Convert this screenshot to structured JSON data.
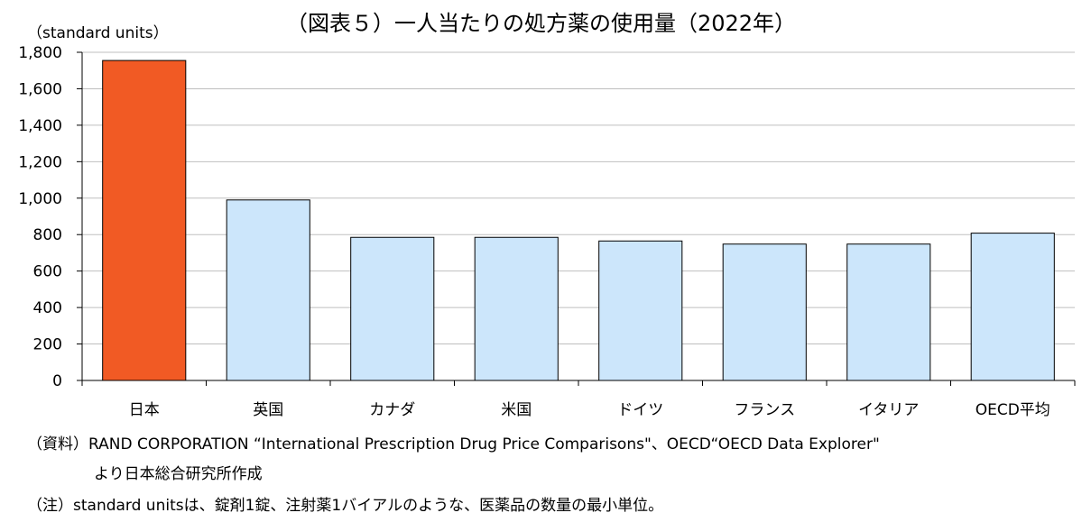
{
  "chart_data": {
    "type": "bar",
    "title": "（図表５）一人当たりの処方薬の使用量（2022年）",
    "ylabel": "（standard units）",
    "categories": [
      "日本",
      "英国",
      "カナダ",
      "米国",
      "ドイツ",
      "フランス",
      "イタリア",
      "OECD平均"
    ],
    "values": [
      1755,
      990,
      785,
      785,
      765,
      748,
      748,
      808
    ],
    "yticks": [
      "0",
      "200",
      "400",
      "600",
      "800",
      "1,000",
      "1,200",
      "1,400",
      "1,600",
      "1,800"
    ],
    "ylim": [
      0,
      1800
    ],
    "grid": true,
    "colors": {
      "highlight": "#f15a24",
      "bar": "#cce6fb",
      "bar_stroke": "#000000",
      "grid": "#bfbfbf"
    }
  },
  "notes": {
    "source_line1": "（資料）RAND CORPORATION “International Prescription Drug Price Comparisons\"、OECD“OECD Data Explorer\"",
    "source_line2": "より日本総合研究所作成",
    "note": "（注）standard unitsは、錠剤1錠、注射薬1バイアルのような、医薬品の数量の最小単位。"
  }
}
